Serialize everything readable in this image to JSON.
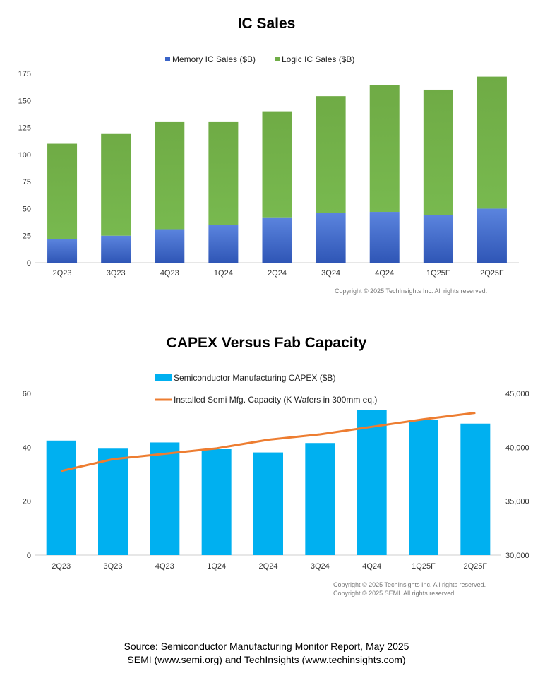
{
  "chart_data": [
    {
      "type": "bar",
      "stacked": true,
      "title": "IC Sales",
      "categories": [
        "2Q23",
        "3Q23",
        "4Q23",
        "1Q24",
        "2Q24",
        "3Q24",
        "4Q24",
        "1Q25F",
        "2Q25F"
      ],
      "series": [
        {
          "name": "Memory IC Sales ($B)",
          "color": "#3a64c8",
          "values": [
            22,
            25,
            31,
            35,
            42,
            46,
            47,
            44,
            50
          ]
        },
        {
          "name": "Logic IC Sales ($B)",
          "color": "#70ad47",
          "values": [
            88,
            94,
            99,
            95,
            98,
            108,
            117,
            116,
            122
          ]
        }
      ],
      "yticks": [
        0,
        25,
        50,
        75,
        100,
        125,
        150,
        175
      ],
      "ylim": [
        0,
        175
      ],
      "legend": "top",
      "grid": false,
      "copyright": "Copyright © 2025 TechInsights Inc.  All rights reserved."
    },
    {
      "type": "bar+line",
      "title": "CAPEX Versus Fab Capacity",
      "categories": [
        "2Q23",
        "3Q23",
        "4Q23",
        "1Q24",
        "2Q24",
        "3Q24",
        "4Q24",
        "1Q25F",
        "2Q25F"
      ],
      "series": [
        {
          "name": "Semiconductor Manufacturing CAPEX ($B)",
          "type": "bar",
          "axis": "left",
          "color": "#00b0f0",
          "values": [
            42.5,
            39.5,
            41.8,
            39.3,
            38.1,
            41.6,
            53.8,
            50.1,
            48.8
          ]
        },
        {
          "name": "Installed Semi Mfg. Capacity (K Wafers in 300mm eq.)",
          "type": "line",
          "axis": "right",
          "color": "#ed7d31",
          "values": [
            37800,
            38900,
            39400,
            39900,
            40700,
            41200,
            41900,
            42600,
            43200
          ]
        }
      ],
      "yticks_left": [
        0,
        20,
        40,
        60
      ],
      "ylim_left": [
        0,
        60
      ],
      "yticks_right": [
        "30,000",
        "35,000",
        "40,000",
        "45,000"
      ],
      "ylim_right": [
        30000,
        45000
      ],
      "legend": "top",
      "grid": false,
      "copyright_lines": [
        "Copyright © 2025 TechInsights Inc.  All rights reserved.",
        "Copyright © 2025 SEMI.  All rights reserved."
      ]
    }
  ],
  "source": {
    "line1": "Source: Semiconductor Manufacturing Monitor Report, May 2025",
    "line2": "SEMI (www.semi.org) and TechInsights (www.techinsights.com)"
  }
}
